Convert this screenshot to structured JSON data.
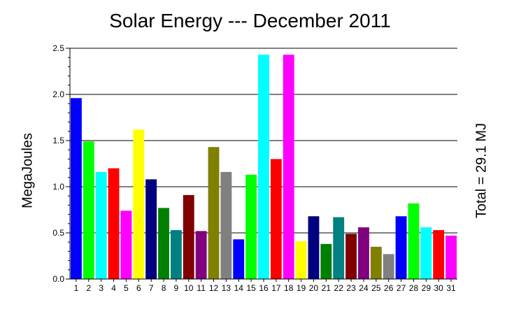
{
  "chart_data": {
    "type": "bar",
    "title": "Solar Energy --- December 2011",
    "ylabel": "MegaJoules",
    "xlabel": "",
    "right_label": "Total = 29.1 MJ",
    "ylim": [
      0,
      2.5
    ],
    "yticks": [
      "0.0",
      "0.5",
      "1.0",
      "1.5",
      "2.0",
      "2.5"
    ],
    "grid": "horizontal at major ticks",
    "categories": [
      "1",
      "2",
      "3",
      "4",
      "5",
      "6",
      "7",
      "8",
      "9",
      "10",
      "11",
      "12",
      "13",
      "14",
      "15",
      "16",
      "17",
      "18",
      "19",
      "20",
      "21",
      "22",
      "23",
      "24",
      "25",
      "26",
      "27",
      "28",
      "29",
      "30",
      "31"
    ],
    "values": [
      1.96,
      1.49,
      1.16,
      1.2,
      0.74,
      1.62,
      1.08,
      0.77,
      0.53,
      0.91,
      0.52,
      1.43,
      1.16,
      0.43,
      1.13,
      2.43,
      1.3,
      2.43,
      0.41,
      0.68,
      0.38,
      0.67,
      0.49,
      0.56,
      0.35,
      0.27,
      0.68,
      0.82,
      0.56,
      0.53,
      0.47
    ],
    "colors": [
      "#0000ff",
      "#00ff00",
      "#00ffff",
      "#ff0000",
      "#ff00ff",
      "#ffff00",
      "#000080",
      "#008000",
      "#008080",
      "#800000",
      "#800080",
      "#808000",
      "#808080",
      "#0000ff",
      "#00ff00",
      "#00ffff",
      "#ff0000",
      "#ff00ff",
      "#ffff00",
      "#000080",
      "#008000",
      "#008080",
      "#800000",
      "#800080",
      "#808000",
      "#808080",
      "#0000ff",
      "#00ff00",
      "#00ffff",
      "#ff0000",
      "#ff00ff"
    ]
  }
}
